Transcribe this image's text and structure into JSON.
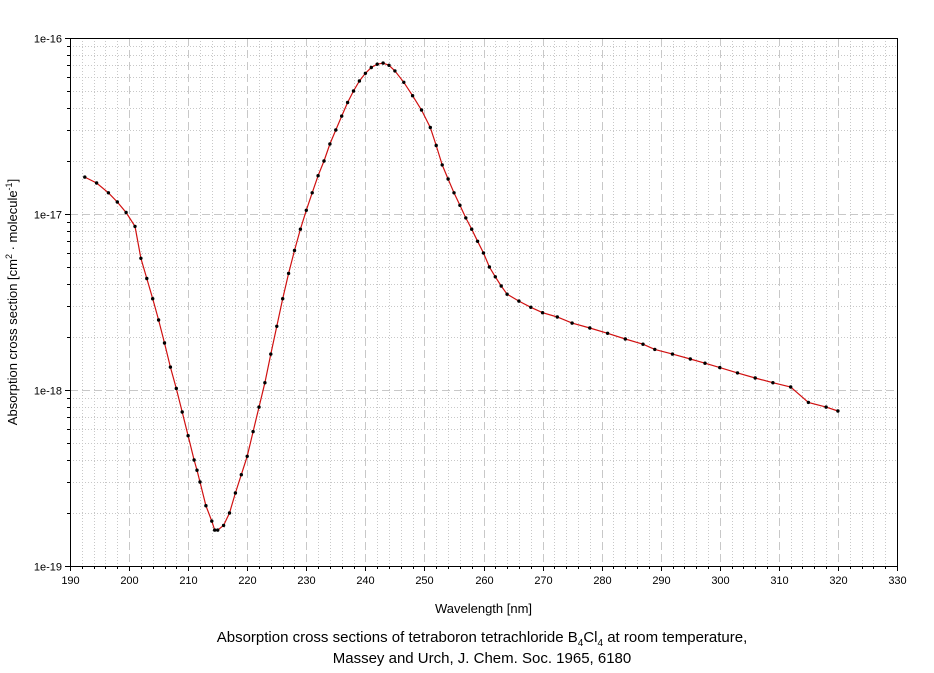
{
  "chart_data": {
    "type": "line",
    "xlabel": "Wavelength [nm]",
    "ylabel": {
      "pre1": "Absorption cross section [cm",
      "sup1": "2",
      "mid": " · molecule",
      "sup2": "-1",
      "post": "]"
    },
    "x_ticks": [
      "190",
      "200",
      "210",
      "220",
      "230",
      "240",
      "250",
      "260",
      "270",
      "280",
      "290",
      "300",
      "310",
      "320",
      "330"
    ],
    "y_ticks": [
      "1e-16",
      "1e-17",
      "1e-18",
      "1e-19"
    ],
    "xlim": [
      190,
      330
    ],
    "ylim": [
      1e-19,
      1e-16
    ],
    "yscale": "log",
    "grid": true,
    "colors": {
      "line": "#d01010",
      "marker": "#000000",
      "grid": "#c8c8c8"
    },
    "series": [
      {
        "x": [
          192.5,
          194.5,
          196.5,
          198,
          199.5,
          201,
          202,
          203,
          204,
          205,
          206,
          207,
          208,
          209,
          210,
          211,
          211.5,
          212,
          213,
          214,
          214.5,
          215,
          216,
          217,
          218,
          219,
          220,
          221,
          222,
          223,
          224,
          225,
          226,
          227,
          228,
          229,
          230,
          231,
          232,
          233,
          234,
          235,
          236,
          237,
          238,
          239,
          240,
          241,
          242,
          243,
          244,
          245,
          246.5,
          248,
          249.5,
          251,
          252,
          253,
          254,
          255,
          256,
          257,
          258,
          259,
          260,
          261,
          262,
          263,
          264,
          266,
          268,
          270,
          272.5,
          275,
          278,
          281,
          284,
          287,
          289,
          292,
          295,
          297.5,
          300,
          303,
          306,
          309,
          312,
          315,
          318,
          320
        ],
        "y": [
          1.62e-17,
          1.5e-17,
          1.32e-17,
          1.17e-17,
          1.02e-17,
          8.5e-18,
          5.6e-18,
          4.3e-18,
          3.3e-18,
          2.5e-18,
          1.85e-18,
          1.35e-18,
          1.02e-18,
          7.5e-19,
          5.5e-19,
          4e-19,
          3.5e-19,
          3e-19,
          2.2e-19,
          1.8e-19,
          1.6e-19,
          1.6e-19,
          1.7e-19,
          2e-19,
          2.6e-19,
          3.3e-19,
          4.2e-19,
          5.8e-19,
          8e-19,
          1.1e-18,
          1.6e-18,
          2.3e-18,
          3.3e-18,
          4.6e-18,
          6.2e-18,
          8.2e-18,
          1.05e-17,
          1.32e-17,
          1.65e-17,
          2e-17,
          2.5e-17,
          3e-17,
          3.6e-17,
          4.3e-17,
          5e-17,
          5.7e-17,
          6.3e-17,
          6.8e-17,
          7.1e-17,
          7.2e-17,
          7e-17,
          6.5e-17,
          5.6e-17,
          4.7e-17,
          3.9e-17,
          3.1e-17,
          2.45e-17,
          1.9e-17,
          1.58e-17,
          1.32e-17,
          1.12e-17,
          9.5e-18,
          8.2e-18,
          7e-18,
          6e-18,
          5e-18,
          4.4e-18,
          3.9e-18,
          3.5e-18,
          3.2e-18,
          2.95e-18,
          2.75e-18,
          2.6e-18,
          2.4e-18,
          2.25e-18,
          2.1e-18,
          1.95e-18,
          1.82e-18,
          1.7e-18,
          1.6e-18,
          1.5e-18,
          1.42e-18,
          1.34e-18,
          1.25e-18,
          1.17e-18,
          1.1e-18,
          1.04e-18,
          8.5e-19,
          8e-19,
          7.6e-19
        ]
      }
    ]
  },
  "caption": {
    "line1_pre": "Absorption cross sections of tetraboron tetrachloride B",
    "sub1": "4",
    "line1_mid": "Cl",
    "sub2": "4",
    "line1_post": " at room temperature,",
    "line2": "Massey and Urch, J. Chem. Soc. 1965, 6180"
  }
}
